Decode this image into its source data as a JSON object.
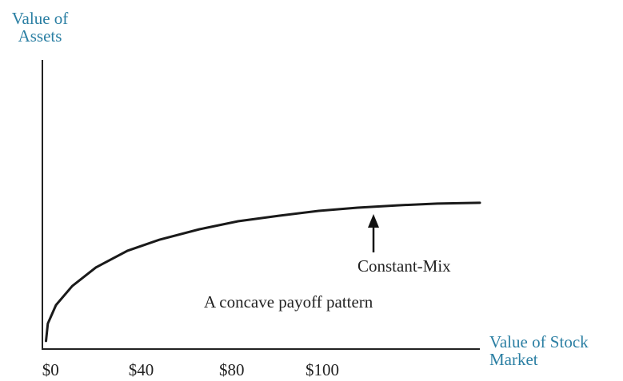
{
  "chart_data": {
    "type": "line",
    "y_label": [
      "Value of",
      "Assets"
    ],
    "x_label": [
      "Value of Stock",
      "Market"
    ],
    "categories": [
      "$0",
      "$40",
      "$80",
      "$100"
    ],
    "series": [
      {
        "name": "Constant-Mix",
        "color": "#1a1a1a",
        "x": [
          -0.05,
          -0.03,
          0.06,
          0.24,
          0.5,
          0.85,
          1.2,
          1.64,
          2.07,
          2.52,
          2.96,
          3.39,
          3.83,
          4.27,
          4.74
        ],
        "values": [
          2.8,
          8.8,
          15.2,
          21.8,
          28.2,
          34.0,
          37.8,
          41.4,
          44.2,
          46.1,
          47.8,
          48.9,
          49.7,
          50.3,
          50.6
        ]
      }
    ],
    "xlim": [
      -0.09,
      4.74
    ],
    "ylim": [
      0,
      100
    ],
    "annotations": [
      "Constant-Mix",
      "A concave payoff pattern"
    ]
  }
}
